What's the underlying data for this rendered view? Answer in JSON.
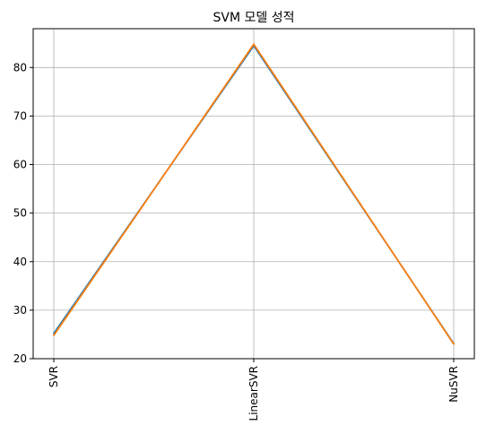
{
  "chart_data": {
    "type": "line",
    "title": "SVM 모델 성적",
    "xlabel": "",
    "ylabel": "",
    "categories": [
      "SVR",
      "LinearSVR",
      "NuSVR"
    ],
    "series": [
      {
        "values": [
          25.2,
          84.5,
          23.1
        ],
        "color": "#1f77b4"
      },
      {
        "values": [
          24.8,
          84.8,
          23.0
        ],
        "color": "#ff7f0e"
      }
    ],
    "ylim": [
      20,
      88
    ],
    "y_ticks": [
      20,
      30,
      40,
      50,
      60,
      70,
      80
    ],
    "grid": true,
    "x_tick_rotation": "vertical"
  }
}
